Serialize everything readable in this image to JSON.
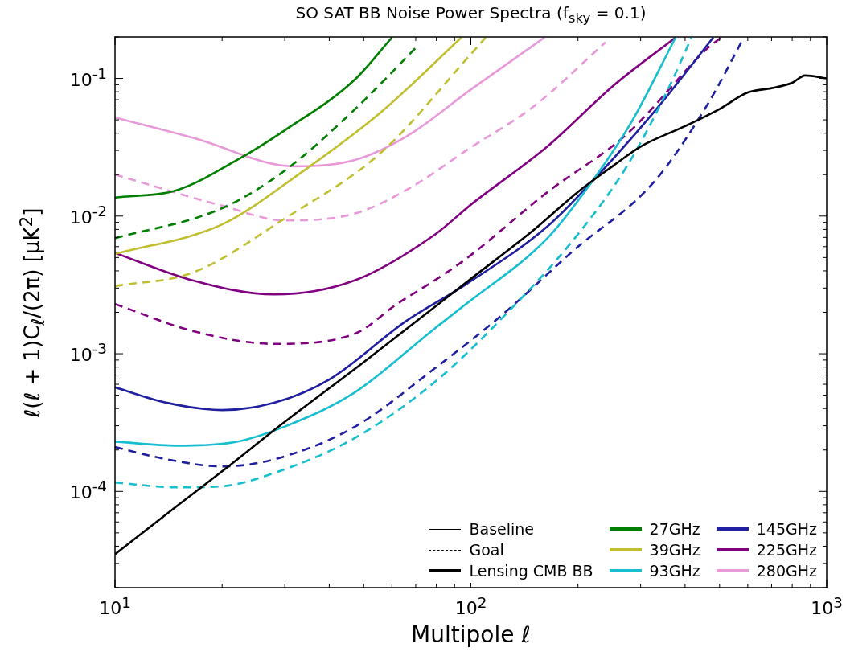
{
  "chart_data": {
    "type": "line",
    "title": "SO SAT BB Noise Power Spectra (f$_{sky}$ = 0.1)",
    "xlabel": "Multipole ℓ",
    "ylabel": "ℓ(ℓ + 1)C$_{ℓ}$/(2π) [μK$^{2}$]",
    "log": "xy",
    "legend": "bottom right",
    "xlim": [
      10,
      1000
    ],
    "ylim": [
      2e-05,
      0.2
    ],
    "xticks": [
      {
        "value": 10,
        "label": "10$^{1}$"
      },
      {
        "value": 20,
        "label": null
      },
      {
        "value": 30,
        "label": null
      },
      {
        "value": 40,
        "label": null
      },
      {
        "value": 50,
        "label": null
      },
      {
        "value": 60,
        "label": null
      },
      {
        "value": 70,
        "label": null
      },
      {
        "value": 80,
        "label": null
      },
      {
        "value": 90,
        "label": null
      },
      {
        "value": 100,
        "label": "10$^{2}$"
      },
      {
        "value": 200,
        "label": null
      },
      {
        "value": 300,
        "label": null
      },
      {
        "value": 400,
        "label": null
      },
      {
        "value": 500,
        "label": null
      },
      {
        "value": 600,
        "label": null
      },
      {
        "value": 700,
        "label": null
      },
      {
        "value": 800,
        "label": null
      },
      {
        "value": 900,
        "label": null
      },
      {
        "value": 1000,
        "label": "10$^{3}$"
      }
    ],
    "yticks": [
      {
        "value": 2e-05,
        "label": null
      },
      {
        "value": 3e-05,
        "label": null
      },
      {
        "value": 4e-05,
        "label": null
      },
      {
        "value": 5e-05,
        "label": null
      },
      {
        "value": 6e-05,
        "label": null
      },
      {
        "value": 7e-05,
        "label": null
      },
      {
        "value": 8e-05,
        "label": null
      },
      {
        "value": 9e-05,
        "label": null
      },
      {
        "value": 0.0001,
        "label": "10$^{-4}$"
      },
      {
        "value": 0.0002,
        "label": null
      },
      {
        "value": 0.0003,
        "label": null
      },
      {
        "value": 0.0004,
        "label": null
      },
      {
        "value": 0.0005,
        "label": null
      },
      {
        "value": 0.0006,
        "label": null
      },
      {
        "value": 0.0007,
        "label": null
      },
      {
        "value": 0.0008,
        "label": null
      },
      {
        "value": 0.0009,
        "label": null
      },
      {
        "value": 0.001,
        "label": "10$^{-3}$"
      },
      {
        "value": 0.002,
        "label": null
      },
      {
        "value": 0.003,
        "label": null
      },
      {
        "value": 0.004,
        "label": null
      },
      {
        "value": 0.005,
        "label": null
      },
      {
        "value": 0.006,
        "label": null
      },
      {
        "value": 0.007,
        "label": null
      },
      {
        "value": 0.008,
        "label": null
      },
      {
        "value": 0.009,
        "label": null
      },
      {
        "value": 0.01,
        "label": "10$^{-2}$"
      },
      {
        "value": 0.02,
        "label": null
      },
      {
        "value": 0.03,
        "label": null
      },
      {
        "value": 0.04,
        "label": null
      },
      {
        "value": 0.05,
        "label": null
      },
      {
        "value": 0.06,
        "label": null
      },
      {
        "value": 0.07,
        "label": null
      },
      {
        "value": 0.08,
        "label": null
      },
      {
        "value": 0.09,
        "label": null
      },
      {
        "value": 0.1,
        "label": "10$^{-1}$"
      },
      {
        "value": 0.2,
        "label": null
      }
    ],
    "series": [
      {
        "name": "Baseline",
        "color": "#000000",
        "line_style": "solid"
      },
      {
        "name": "Goal",
        "color": "#000000",
        "line_style": "dashed"
      },
      {
        "name": "Lensing CMB BB",
        "color": "#000000",
        "line_style": "solid",
        "x": [
          10,
          15,
          20,
          30,
          50,
          100,
          150,
          200,
          250,
          300,
          400,
          500,
          600,
          700,
          800,
          870,
          1000
        ],
        "values": [
          3.5e-05,
          7.9e-05,
          0.00014,
          0.00032,
          0.00087,
          0.0035,
          0.0079,
          0.015,
          0.023,
          0.032,
          0.045,
          0.06,
          0.079,
          0.085,
          0.093,
          0.105,
          0.1
        ]
      },
      {
        "name": "27GHz",
        "color": "#007f00",
        "line_style": "solid",
        "x": [
          10,
          15,
          22,
          30,
          47,
          60
        ],
        "values": [
          0.0136,
          0.0155,
          0.0255,
          0.042,
          0.097,
          0.198
        ]
      },
      {
        "color": "#007f00",
        "line_style": "dashed",
        "x": [
          10,
          20,
          30,
          47,
          71
        ],
        "values": [
          0.0069,
          0.0114,
          0.0214,
          0.059,
          0.173
        ]
      },
      {
        "name": "39GHz",
        "color": "#bfbf30",
        "line_style": "solid",
        "x": [
          10,
          20,
          33,
          56,
          94
        ],
        "values": [
          0.0053,
          0.0087,
          0.0203,
          0.057,
          0.198
        ]
      },
      {
        "color": "#bfbf30",
        "line_style": "dashed",
        "x": [
          10,
          16.6,
          30,
          56,
          100,
          110
        ],
        "values": [
          0.0031,
          0.0039,
          0.0096,
          0.029,
          0.15,
          0.198
        ]
      },
      {
        "name": "93GHz",
        "color": "#17becf",
        "line_style": "solid",
        "x": [
          10,
          15,
          21.5,
          30,
          47,
          79,
          97,
          164,
          223,
          285,
          376
        ],
        "values": [
          0.00023,
          0.000215,
          0.000227,
          0.000296,
          0.00052,
          0.00152,
          0.0023,
          0.0069,
          0.019,
          0.05,
          0.198
        ]
      },
      {
        "color": "#17becf",
        "line_style": "dashed",
        "x": [
          10,
          15,
          20,
          28,
          47,
          79,
          122,
          194,
          275,
          357,
          417
        ],
        "values": [
          0.000116,
          0.000107,
          0.000109,
          0.000136,
          0.000243,
          0.00062,
          0.0018,
          0.0067,
          0.0232,
          0.082,
          0.198
        ]
      },
      {
        "name": "145GHz",
        "color": "#1f1f9f",
        "line_style": "solid",
        "x": [
          10,
          14,
          20,
          28,
          40,
          66,
          97,
          164,
          223,
          327,
          480
        ],
        "values": [
          0.00057,
          0.00044,
          0.00039,
          0.00044,
          0.00065,
          0.00174,
          0.0032,
          0.0084,
          0.0187,
          0.057,
          0.198
        ]
      },
      {
        "color": "#1f1f9f",
        "line_style": "dashed",
        "x": [
          10,
          14,
          20,
          28,
          47,
          79,
          122,
          194,
          327,
          463,
          580
        ],
        "values": [
          0.00021,
          0.000171,
          0.000152,
          0.000171,
          0.000293,
          0.00078,
          0.0019,
          0.0056,
          0.0177,
          0.065,
          0.19
        ]
      },
      {
        "name": "225GHz",
        "color": "#800080",
        "line_style": "solid",
        "x": [
          10,
          16.6,
          28,
          47,
          79,
          100,
          164,
          252,
          376
        ],
        "values": [
          0.0054,
          0.0034,
          0.0027,
          0.0034,
          0.0073,
          0.0121,
          0.032,
          0.089,
          0.198
        ]
      },
      {
        "color": "#800080",
        "line_style": "dashed",
        "x": [
          10,
          16.6,
          28,
          47,
          62,
          79,
          97,
          164,
          275,
          463,
          505
        ],
        "values": [
          0.0023,
          0.00146,
          0.00118,
          0.00139,
          0.0023,
          0.0034,
          0.0049,
          0.0149,
          0.0396,
          0.166,
          0.198
        ]
      },
      {
        "name": "280GHz",
        "color": "#e899d8",
        "line_style": "solid",
        "x": [
          10,
          16.6,
          32,
          47,
          66,
          100,
          161
        ],
        "values": [
          0.052,
          0.037,
          0.023,
          0.0255,
          0.038,
          0.083,
          0.198
        ]
      },
      {
        "color": "#e899d8",
        "line_style": "dashed",
        "x": [
          10,
          20,
          30,
          47,
          66,
          99,
          150,
          239
        ],
        "values": [
          0.02,
          0.0119,
          0.0093,
          0.0104,
          0.0155,
          0.031,
          0.0625,
          0.183
        ]
      }
    ]
  }
}
